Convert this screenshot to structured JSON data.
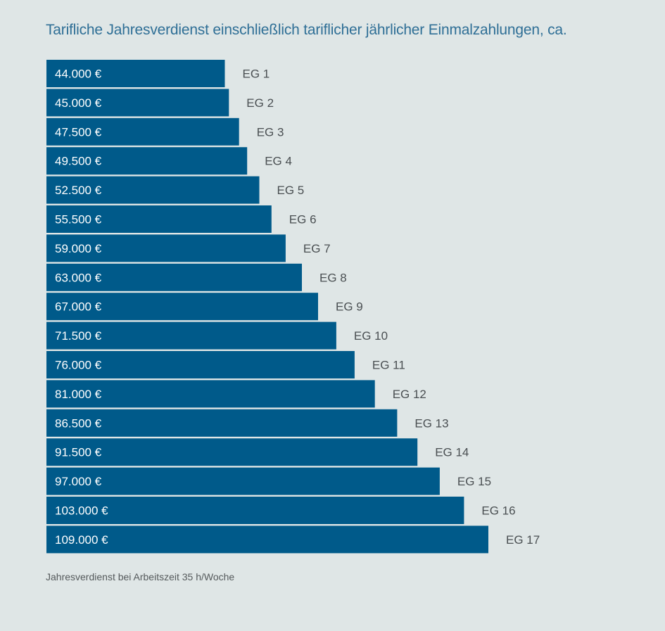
{
  "chart_data": {
    "type": "bar",
    "orientation": "horizontal",
    "title": "Tarifliche Jahresverdienst einschließlich tariflicher jährlicher Einmalzahlungen, ca.",
    "footnote": "Jahresverdienst bei Arbeitszeit 35 h/Woche",
    "unit": "€",
    "categories": [
      "EG 1",
      "EG 2",
      "EG 3",
      "EG 4",
      "EG 5",
      "EG 6",
      "EG 7",
      "EG 8",
      "EG 9",
      "EG 10",
      "EG 11",
      "EG 12",
      "EG 13",
      "EG 14",
      "EG 15",
      "EG 16",
      "EG 17"
    ],
    "values": [
      44000,
      45000,
      47500,
      49500,
      52500,
      55500,
      59000,
      63000,
      67000,
      71500,
      76000,
      81000,
      86500,
      91500,
      97000,
      103000,
      109000
    ],
    "value_labels": [
      "44.000 €",
      "45.000 €",
      "47.500 €",
      "49.500 €",
      "52.500 €",
      "55.500 €",
      "59.000 €",
      "63.000 €",
      "67.000 €",
      "71.500 €",
      "76.000 €",
      "81.000 €",
      "86.500 €",
      "91.500 €",
      "97.000 €",
      "103.000 €",
      "109.000 €"
    ],
    "xlim": [
      0,
      109000
    ],
    "grid": false,
    "legend": "none",
    "colors": {
      "bar": "#005a8a",
      "bar_label": "#ffffff",
      "category_label": "#4a4f52",
      "title": "#2f6f96",
      "background": "#dfe6e6"
    }
  }
}
